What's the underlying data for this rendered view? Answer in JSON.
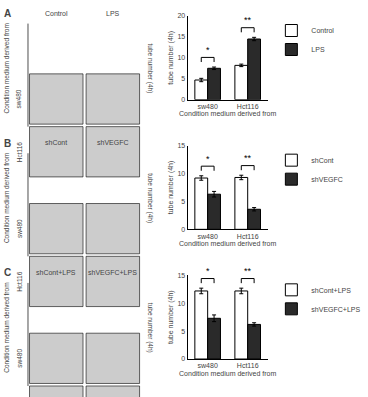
{
  "chart_data": [
    {
      "type": "bar",
      "title": "A",
      "categories": [
        "sw480",
        "Hct116"
      ],
      "series": [
        {
          "name": "Control",
          "color": "white",
          "values": [
            4.7,
            8.2
          ],
          "errors": [
            0.4,
            0.3
          ]
        },
        {
          "name": "LPS",
          "color": "#2a2a2a",
          "values": [
            7.5,
            14.5
          ],
          "errors": [
            0.3,
            0.4
          ]
        }
      ],
      "xlabel": "Condition medium derived from",
      "ylabel": "tube number (4h)",
      "ylim": [
        0,
        20
      ],
      "yticks": [
        0,
        5,
        10,
        15,
        20
      ],
      "annotations": [
        {
          "x": "sw480",
          "text": "*"
        },
        {
          "x": "Hct116",
          "text": "**"
        }
      ],
      "legend": "upper right",
      "grid": false
    },
    {
      "type": "bar",
      "title": "B",
      "categories": [
        "sw480",
        "Hct116"
      ],
      "series": [
        {
          "name": "shCont",
          "color": "white",
          "values": [
            9.2,
            9.3
          ],
          "errors": [
            0.4,
            0.4
          ]
        },
        {
          "name": "shVEGFC",
          "color": "#2a2a2a",
          "values": [
            6.3,
            3.6
          ],
          "errors": [
            0.5,
            0.3
          ]
        }
      ],
      "xlabel": "Condition medium derived from",
      "ylabel": "tube number (4h)",
      "ylim": [
        0,
        15
      ],
      "yticks": [
        0,
        5,
        10,
        15
      ],
      "annotations": [
        {
          "x": "sw480",
          "text": "*"
        },
        {
          "x": "Hct116",
          "text": "**"
        }
      ],
      "legend": "upper right",
      "grid": false
    },
    {
      "type": "bar",
      "title": "C",
      "categories": [
        "sw480",
        "Hct116"
      ],
      "series": [
        {
          "name": "shCont+LPS",
          "color": "white",
          "values": [
            12.2,
            12.2
          ],
          "errors": [
            0.5,
            0.5
          ]
        },
        {
          "name": "shVEGFC+LPS",
          "color": "#2a2a2a",
          "values": [
            7.3,
            6.2
          ],
          "errors": [
            0.6,
            0.3
          ]
        }
      ],
      "xlabel": "Condition medium derived from",
      "ylabel": "tube number (4h)",
      "ylim": [
        0,
        15
      ],
      "yticks": [
        0,
        5,
        10,
        15
      ],
      "annotations": [
        {
          "x": "sw480",
          "text": "*"
        },
        {
          "x": "Hct116",
          "text": "**"
        }
      ],
      "legend": "upper right",
      "grid": false
    }
  ]
}
